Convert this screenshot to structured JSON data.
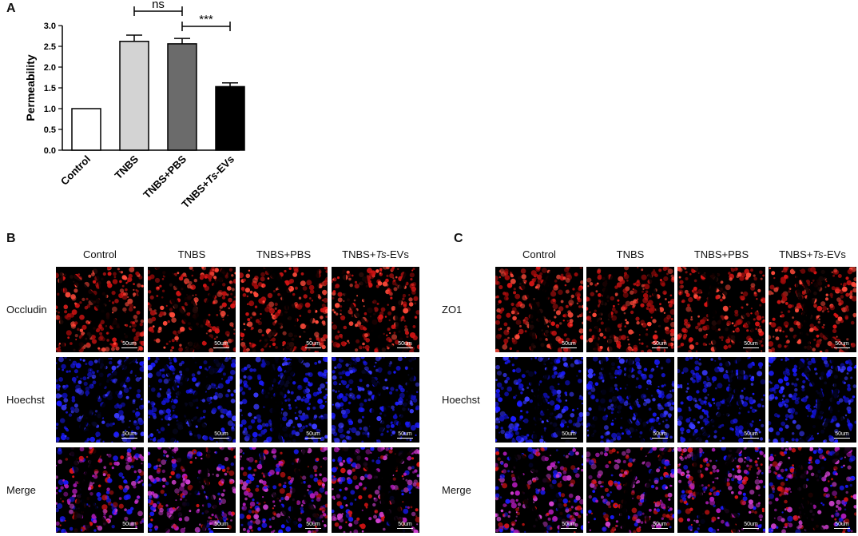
{
  "panels": {
    "a_label": "A",
    "b_label": "B",
    "c_label": "C"
  },
  "chart_data": {
    "type": "bar",
    "title": "",
    "ylabel": "Permeability",
    "xlabel": "",
    "categories": [
      "Control",
      "TNBS",
      "TNBS+PBS",
      "TNBS+Ts-EVs"
    ],
    "category_labels": [
      {
        "prefix": "Control",
        "italic": "",
        "suffix": ""
      },
      {
        "prefix": "TNBS",
        "italic": "",
        "suffix": ""
      },
      {
        "prefix": "TNBS+PBS",
        "italic": "",
        "suffix": ""
      },
      {
        "prefix": "TNBS+",
        "italic": "Ts",
        "suffix": "-EVs"
      }
    ],
    "values": [
      1.0,
      2.62,
      2.56,
      1.53
    ],
    "errors": [
      0,
      0.15,
      0.13,
      0.09
    ],
    "bar_colors": [
      "#ffffff",
      "#d3d3d3",
      "#6b6b6b",
      "#000000"
    ],
    "ylim": [
      0,
      3.0
    ],
    "yticks": [
      "0.0",
      "0.5",
      "1.0",
      "1.5",
      "2.0",
      "2.5",
      "3.0"
    ],
    "significance": [
      {
        "from": 1,
        "to": 2,
        "label": "ns"
      },
      {
        "from": 2,
        "to": 3,
        "label": "***"
      }
    ],
    "grid": false
  },
  "panel_b": {
    "columns": [
      {
        "prefix": "Control",
        "italic": "",
        "suffix": ""
      },
      {
        "prefix": "TNBS",
        "italic": "",
        "suffix": ""
      },
      {
        "prefix": "TNBS+PBS",
        "italic": "",
        "suffix": ""
      },
      {
        "prefix": "TNBS+",
        "italic": "Ts",
        "suffix": "-EVs"
      }
    ],
    "rows": [
      "Occludin",
      "Hoechst",
      "Merge"
    ]
  },
  "panel_c": {
    "columns": [
      {
        "prefix": "Control",
        "italic": "",
        "suffix": ""
      },
      {
        "prefix": "TNBS",
        "italic": "",
        "suffix": ""
      },
      {
        "prefix": "TNBS+PBS",
        "italic": "",
        "suffix": ""
      },
      {
        "prefix": "TNBS+",
        "italic": "Ts",
        "suffix": "-EVs"
      }
    ],
    "rows": [
      "ZO1",
      "Hoechst",
      "Merge"
    ]
  },
  "scale_bar_label": "50um",
  "channel_colors": {
    "red": "#d81414",
    "blue": "#1a1aff",
    "merge": "#b01ab8",
    "background": "#000000"
  }
}
